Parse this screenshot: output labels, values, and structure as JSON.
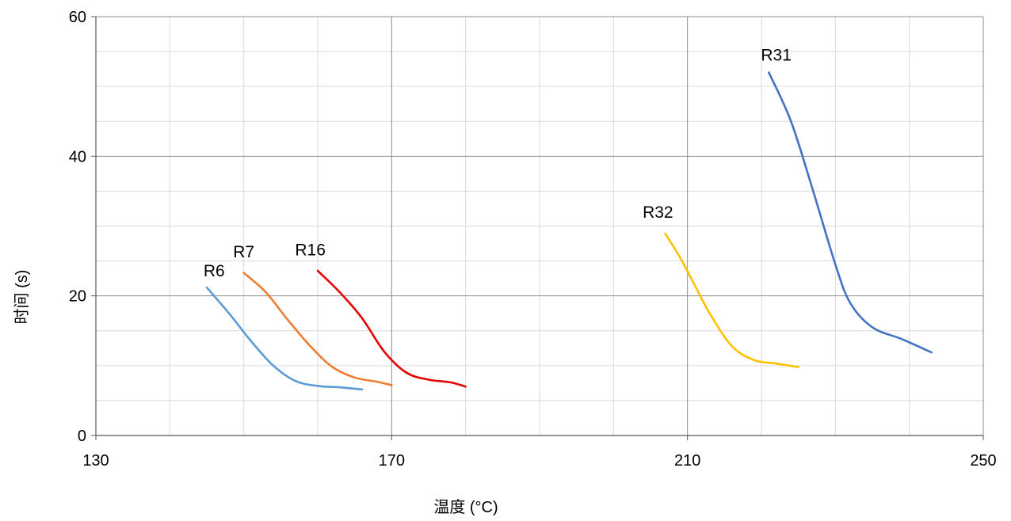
{
  "chart_data": {
    "type": "line",
    "title": "",
    "xlabel": "温度 (°C)",
    "ylabel": "时间 (s)",
    "xlim": [
      130,
      250
    ],
    "ylim": [
      0,
      60
    ],
    "x_ticks": [
      130,
      170,
      210,
      250
    ],
    "y_ticks": [
      0,
      20,
      40,
      60
    ],
    "x_minor_step": 10,
    "y_minor_step": 5,
    "grid": true,
    "legend": "none",
    "series": [
      {
        "name": "R6",
        "color": "#5B9BD5",
        "points": [
          [
            145,
            21.2
          ],
          [
            148,
            17.5
          ],
          [
            151,
            13.5
          ],
          [
            154,
            10
          ],
          [
            157,
            7.8
          ],
          [
            160,
            7.1
          ],
          [
            163,
            6.9
          ],
          [
            166,
            6.6
          ]
        ]
      },
      {
        "name": "R7",
        "color": "#ED7D31",
        "points": [
          [
            150,
            23.3
          ],
          [
            153,
            20.5
          ],
          [
            156,
            16.5
          ],
          [
            159,
            12.8
          ],
          [
            162,
            9.8
          ],
          [
            165,
            8.3
          ],
          [
            168,
            7.7
          ],
          [
            170,
            7.2
          ]
        ]
      },
      {
        "name": "R16",
        "color": "#E60000",
        "points": [
          [
            160,
            23.6
          ],
          [
            163,
            20.5
          ],
          [
            166,
            16.8
          ],
          [
            169,
            12
          ],
          [
            172,
            9
          ],
          [
            175,
            8
          ],
          [
            178,
            7.6
          ],
          [
            180,
            7.0
          ]
        ]
      },
      {
        "name": "R32",
        "color": "#FFC000",
        "points": [
          [
            207,
            28.9
          ],
          [
            209,
            25.5
          ],
          [
            211,
            21.5
          ],
          [
            213,
            17.5
          ],
          [
            216,
            12.8
          ],
          [
            219,
            10.8
          ],
          [
            222,
            10.3
          ],
          [
            225,
            9.8
          ]
        ]
      },
      {
        "name": "R31",
        "color": "#4472C4",
        "points": [
          [
            221,
            52
          ],
          [
            224,
            45
          ],
          [
            227,
            35
          ],
          [
            230,
            24.5
          ],
          [
            232,
            19
          ],
          [
            235,
            15.5
          ],
          [
            239,
            13.8
          ],
          [
            243,
            11.9
          ]
        ]
      }
    ],
    "labels": [
      {
        "text": "R6",
        "x": 146,
        "y": 22.8
      },
      {
        "text": "R7",
        "x": 150,
        "y": 25.5
      },
      {
        "text": "R16",
        "x": 159,
        "y": 25.8
      },
      {
        "text": "R32",
        "x": 206,
        "y": 31.2
      },
      {
        "text": "R31",
        "x": 222,
        "y": 53.7
      }
    ]
  }
}
